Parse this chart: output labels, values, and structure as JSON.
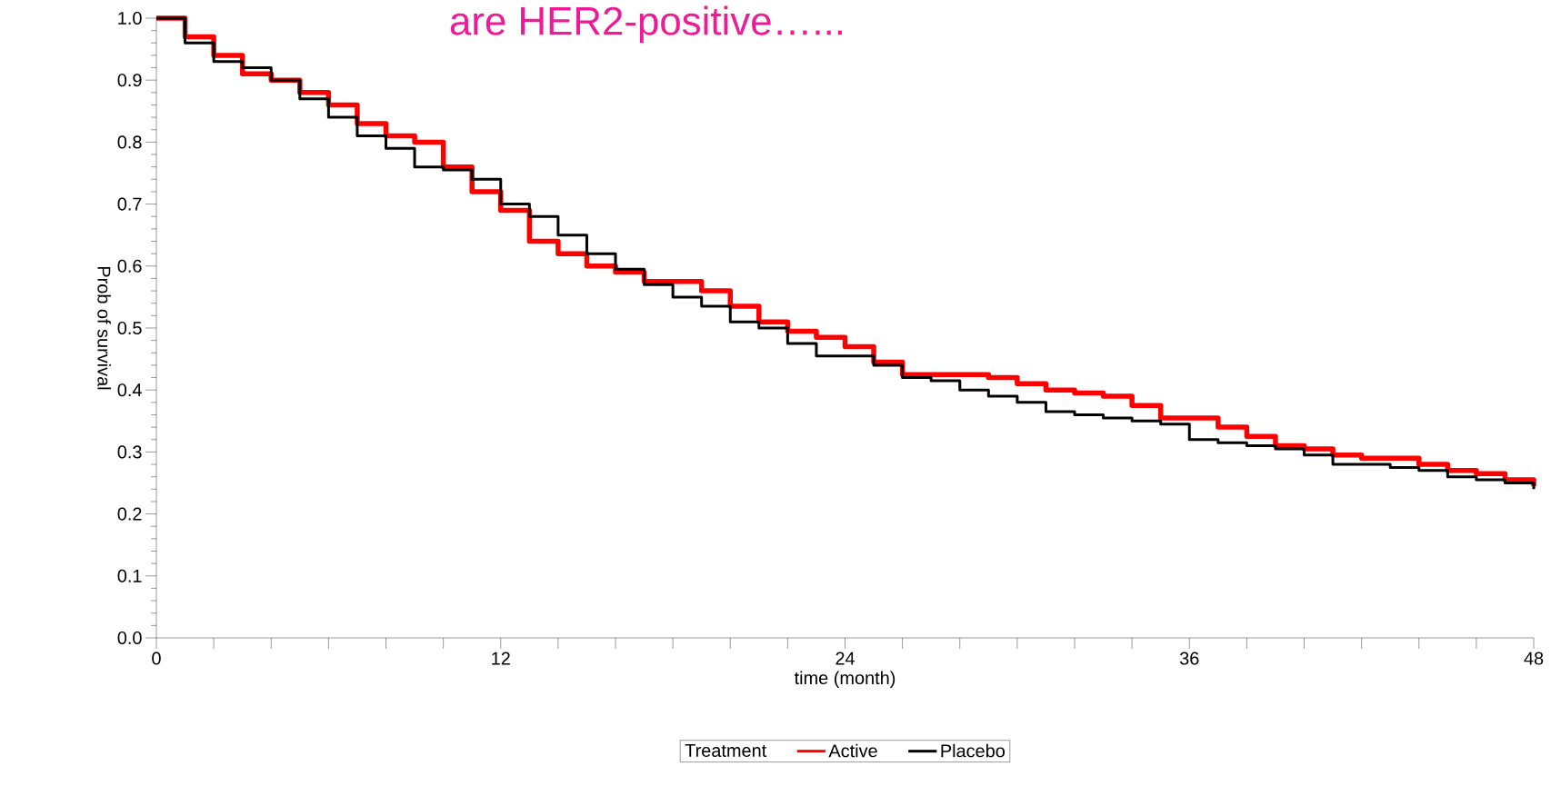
{
  "chart_data": {
    "type": "step",
    "title": "are HER2-positive…...",
    "xlabel": "time (month)",
    "ylabel": "Prob of survival",
    "legend_title": "Treatment",
    "x": [
      0,
      1,
      2,
      3,
      4,
      5,
      6,
      7,
      8,
      9,
      10,
      11,
      12,
      13,
      14,
      15,
      16,
      17,
      18,
      19,
      20,
      21,
      22,
      23,
      24,
      25,
      26,
      27,
      28,
      29,
      30,
      31,
      32,
      33,
      34,
      35,
      36,
      37,
      38,
      39,
      40,
      41,
      42,
      43,
      44,
      45,
      46,
      47,
      48
    ],
    "series": [
      {
        "name": "Active",
        "color": "#ff0000",
        "values": [
          1.0,
          0.97,
          0.94,
          0.91,
          0.9,
          0.88,
          0.86,
          0.83,
          0.81,
          0.8,
          0.76,
          0.72,
          0.69,
          0.64,
          0.62,
          0.6,
          0.59,
          0.575,
          0.575,
          0.56,
          0.535,
          0.51,
          0.495,
          0.485,
          0.47,
          0.445,
          0.425,
          0.425,
          0.425,
          0.42,
          0.41,
          0.4,
          0.395,
          0.39,
          0.375,
          0.355,
          0.355,
          0.34,
          0.325,
          0.31,
          0.305,
          0.295,
          0.29,
          0.29,
          0.28,
          0.27,
          0.265,
          0.255,
          0.245
        ]
      },
      {
        "name": "Placebo",
        "color": "#000000",
        "values": [
          1.0,
          0.96,
          0.93,
          0.92,
          0.9,
          0.87,
          0.84,
          0.81,
          0.79,
          0.76,
          0.755,
          0.74,
          0.7,
          0.68,
          0.65,
          0.62,
          0.595,
          0.57,
          0.55,
          0.535,
          0.51,
          0.5,
          0.475,
          0.455,
          0.455,
          0.44,
          0.42,
          0.415,
          0.4,
          0.39,
          0.38,
          0.365,
          0.36,
          0.355,
          0.35,
          0.345,
          0.32,
          0.315,
          0.31,
          0.305,
          0.295,
          0.28,
          0.28,
          0.275,
          0.27,
          0.26,
          0.255,
          0.25,
          0.24
        ]
      }
    ],
    "xlim": [
      0,
      48
    ],
    "xticks": [
      0,
      {
        "value": 2,
        "label": null
      },
      {
        "value": 4,
        "label": null
      },
      {
        "value": 6,
        "label": null
      },
      {
        "value": 8,
        "label": null
      },
      {
        "value": 10,
        "label": null
      },
      12,
      {
        "value": 14,
        "label": null
      },
      {
        "value": 16,
        "label": null
      },
      {
        "value": 18,
        "label": null
      },
      {
        "value": 20,
        "label": null
      },
      {
        "value": 22,
        "label": null
      },
      24,
      {
        "value": 26,
        "label": null
      },
      {
        "value": 28,
        "label": null
      },
      {
        "value": 30,
        "label": null
      },
      {
        "value": 32,
        "label": null
      },
      {
        "value": 34,
        "label": null
      },
      36,
      {
        "value": 38,
        "label": null
      },
      {
        "value": 40,
        "label": null
      },
      {
        "value": 42,
        "label": null
      },
      {
        "value": 44,
        "label": null
      },
      {
        "value": 46,
        "label": null
      },
      48
    ],
    "ylim": [
      0,
      1
    ],
    "yticks": [
      {
        "value": 0,
        "label": "0.0"
      },
      {
        "value": 0.1,
        "label": "0.1"
      },
      {
        "value": 0.2,
        "label": "0.2"
      },
      {
        "value": 0.3,
        "label": "0.3"
      },
      {
        "value": 0.4,
        "label": "0.4"
      },
      {
        "value": 0.5,
        "label": "0.5"
      },
      {
        "value": 0.6,
        "label": "0.6"
      },
      {
        "value": 0.7,
        "label": "0.7"
      },
      {
        "value": 0.8,
        "label": "0.8"
      },
      {
        "value": 0.9,
        "label": "0.9"
      },
      {
        "value": 1.0,
        "label": "1.0"
      }
    ],
    "grid": false,
    "legend": "bottom",
    "line_style": "solid",
    "marker": "none"
  }
}
